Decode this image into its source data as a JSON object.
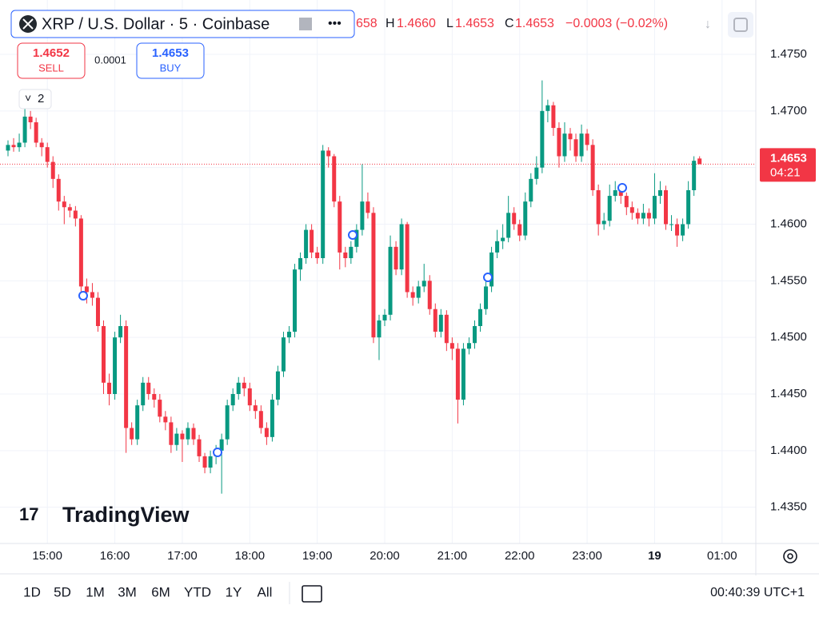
{
  "header": {
    "symbol": "XRP / U.S. Dollar · 5 · Coinbase",
    "open_partial": "658",
    "high_label": "H",
    "high": "1.4660",
    "low_label": "L",
    "low": "1.4653",
    "close_label": "C",
    "close": "1.4653",
    "change": "−0.0003 (−0.02%)"
  },
  "trade": {
    "sell_price": "1.4652",
    "sell_label": "SELL",
    "spread": "0.0001",
    "buy_price": "1.4653",
    "buy_label": "BUY"
  },
  "indicators_count": "2",
  "logo": "TradingView",
  "toolbar": {
    "ranges": [
      "1D",
      "5D",
      "1M",
      "3M",
      "6M",
      "YTD",
      "1Y",
      "All"
    ],
    "clock": "00:40:39 UTC+1"
  },
  "chart_data": {
    "type": "candlestick",
    "up_color": "#089981",
    "down_color": "#f23645",
    "grid": true,
    "ylim": [
      1.4318,
      1.4798
    ],
    "yticks": [
      {
        "value": 1.435,
        "label": "1.4350"
      },
      {
        "value": 1.44,
        "label": "1.4400"
      },
      {
        "value": 1.445,
        "label": "1.4450"
      },
      {
        "value": 1.45,
        "label": "1.4500"
      },
      {
        "value": 1.455,
        "label": "1.4550"
      },
      {
        "value": 1.46,
        "label": "1.4600"
      },
      {
        "value": 1.465,
        "label": "1.4650"
      },
      {
        "value": 1.47,
        "label": "1.4700"
      },
      {
        "value": 1.475,
        "label": "1.4750"
      }
    ],
    "xticks": [
      "15:00",
      "16:00",
      "17:00",
      "18:00",
      "19:00",
      "20:00",
      "21:00",
      "22:00",
      "23:00",
      {
        "value": "00:00",
        "label": "19"
      },
      "01:00"
    ],
    "last_price": {
      "value": 1.4653,
      "label": "1.4653",
      "countdown": "04:21"
    },
    "x": [
      "14:25",
      "14:30",
      "14:35",
      "14:40",
      "14:45",
      "14:50",
      "14:55",
      "15:00",
      "15:05",
      "15:10",
      "15:15",
      "15:20",
      "15:25",
      "15:30",
      "15:35",
      "15:40",
      "15:45",
      "15:50",
      "15:55",
      "16:00",
      "16:05",
      "16:10",
      "16:15",
      "16:20",
      "16:25",
      "16:30",
      "16:35",
      "16:40",
      "16:45",
      "16:50",
      "16:55",
      "17:00",
      "17:05",
      "17:10",
      "17:15",
      "17:20",
      "17:25",
      "17:30",
      "17:35",
      "17:40",
      "17:45",
      "17:50",
      "17:55",
      "18:00",
      "18:05",
      "18:10",
      "18:15",
      "18:20",
      "18:25",
      "18:30",
      "18:35",
      "18:40",
      "18:45",
      "18:50",
      "18:55",
      "19:00",
      "19:05",
      "19:10",
      "19:15",
      "19:20",
      "19:25",
      "19:30",
      "19:35",
      "19:40",
      "19:45",
      "19:50",
      "19:55",
      "20:00",
      "20:05",
      "20:10",
      "20:15",
      "20:20",
      "20:25",
      "20:30",
      "20:35",
      "20:40",
      "20:45",
      "20:50",
      "20:55",
      "21:00",
      "21:05",
      "21:10",
      "21:15",
      "21:20",
      "21:25",
      "21:30",
      "21:35",
      "21:40",
      "21:45",
      "21:50",
      "21:55",
      "22:00",
      "22:05",
      "22:10",
      "22:15",
      "22:20",
      "22:25",
      "22:30",
      "22:35",
      "22:40",
      "22:45",
      "22:50",
      "22:55",
      "23:00",
      "23:05",
      "23:10",
      "23:15",
      "23:20",
      "23:25",
      "23:30",
      "23:35",
      "23:40",
      "23:45",
      "23:50",
      "23:55",
      "00:00",
      "00:05",
      "00:10",
      "00:15",
      "00:20",
      "00:25",
      "00:30",
      "00:35",
      "00:40"
    ],
    "ohlc": [
      [
        1.4665,
        1.4674,
        1.466,
        1.467
      ],
      [
        1.467,
        1.4676,
        1.4664,
        1.4668
      ],
      [
        1.4668,
        1.468,
        1.4664,
        1.4672
      ],
      [
        1.4672,
        1.4712,
        1.4668,
        1.4695
      ],
      [
        1.4695,
        1.47,
        1.4684,
        1.469
      ],
      [
        1.469,
        1.4694,
        1.4668,
        1.4672
      ],
      [
        1.4672,
        1.4676,
        1.466,
        1.4668
      ],
      [
        1.4668,
        1.4672,
        1.465,
        1.4655
      ],
      [
        1.4655,
        1.466,
        1.4632,
        1.464
      ],
      [
        1.464,
        1.4644,
        1.4612,
        1.462
      ],
      [
        1.462,
        1.4625,
        1.46,
        1.4615
      ],
      [
        1.4615,
        1.4618,
        1.4606,
        1.4612
      ],
      [
        1.4612,
        1.4616,
        1.4598,
        1.4605
      ],
      [
        1.4605,
        1.4608,
        1.454,
        1.4545
      ],
      [
        1.4545,
        1.4552,
        1.453,
        1.454
      ],
      [
        1.454,
        1.4548,
        1.4528,
        1.4535
      ],
      [
        1.4535,
        1.454,
        1.4505,
        1.451
      ],
      [
        1.451,
        1.4515,
        1.445,
        1.446
      ],
      [
        1.446,
        1.4468,
        1.444,
        1.445
      ],
      [
        1.445,
        1.4505,
        1.4445,
        1.45
      ],
      [
        1.45,
        1.452,
        1.4495,
        1.451
      ],
      [
        1.451,
        1.4515,
        1.4398,
        1.442
      ],
      [
        1.442,
        1.4425,
        1.4405,
        1.441
      ],
      [
        1.441,
        1.4445,
        1.4405,
        1.444
      ],
      [
        1.444,
        1.4465,
        1.4435,
        1.446
      ],
      [
        1.446,
        1.4465,
        1.4445,
        1.445
      ],
      [
        1.445,
        1.4455,
        1.4438,
        1.4445
      ],
      [
        1.4445,
        1.445,
        1.4425,
        1.443
      ],
      [
        1.443,
        1.4435,
        1.4418,
        1.4425
      ],
      [
        1.4425,
        1.443,
        1.4398,
        1.4405
      ],
      [
        1.4405,
        1.442,
        1.44,
        1.4415
      ],
      [
        1.4415,
        1.4418,
        1.439,
        1.441
      ],
      [
        1.441,
        1.4425,
        1.4405,
        1.442
      ],
      [
        1.442,
        1.4424,
        1.4405,
        1.441
      ],
      [
        1.441,
        1.4414,
        1.439,
        1.4395
      ],
      [
        1.4395,
        1.4398,
        1.438,
        1.4385
      ],
      [
        1.4385,
        1.44,
        1.438,
        1.4395
      ],
      [
        1.4395,
        1.4405,
        1.4388,
        1.44
      ],
      [
        1.44,
        1.4415,
        1.4362,
        1.441
      ],
      [
        1.441,
        1.4445,
        1.4405,
        1.444
      ],
      [
        1.444,
        1.4455,
        1.4435,
        1.445
      ],
      [
        1.445,
        1.4465,
        1.4445,
        1.446
      ],
      [
        1.446,
        1.4465,
        1.4448,
        1.4455
      ],
      [
        1.4455,
        1.446,
        1.4435,
        1.444
      ],
      [
        1.444,
        1.4445,
        1.4428,
        1.4435
      ],
      [
        1.4435,
        1.444,
        1.4415,
        1.442
      ],
      [
        1.442,
        1.4425,
        1.4405,
        1.4412
      ],
      [
        1.4412,
        1.445,
        1.4408,
        1.4445
      ],
      [
        1.4445,
        1.4475,
        1.444,
        1.447
      ],
      [
        1.447,
        1.4505,
        1.4465,
        1.45
      ],
      [
        1.45,
        1.451,
        1.4495,
        1.4505
      ],
      [
        1.4505,
        1.4565,
        1.45,
        1.456
      ],
      [
        1.456,
        1.4575,
        1.455,
        1.457
      ],
      [
        1.457,
        1.46,
        1.4565,
        1.4595
      ],
      [
        1.4595,
        1.46,
        1.457,
        1.4575
      ],
      [
        1.4575,
        1.458,
        1.4565,
        1.457
      ],
      [
        1.457,
        1.467,
        1.4565,
        1.4665
      ],
      [
        1.4665,
        1.4668,
        1.465,
        1.466
      ],
      [
        1.466,
        1.4662,
        1.4615,
        1.462
      ],
      [
        1.462,
        1.4625,
        1.456,
        1.4575
      ],
      [
        1.4575,
        1.458,
        1.4562,
        1.457
      ],
      [
        1.457,
        1.4585,
        1.4565,
        1.458
      ],
      [
        1.458,
        1.46,
        1.4575,
        1.4595
      ],
      [
        1.4595,
        1.4653,
        1.459,
        1.462
      ],
      [
        1.462,
        1.4628,
        1.4605,
        1.461
      ],
      [
        1.461,
        1.4615,
        1.4495,
        1.45
      ],
      [
        1.45,
        1.452,
        1.448,
        1.4515
      ],
      [
        1.4515,
        1.4525,
        1.451,
        1.452
      ],
      [
        1.452,
        1.459,
        1.4515,
        1.458
      ],
      [
        1.458,
        1.4585,
        1.4555,
        1.456
      ],
      [
        1.456,
        1.4605,
        1.4555,
        1.46
      ],
      [
        1.46,
        1.4602,
        1.4535,
        1.454
      ],
      [
        1.454,
        1.4545,
        1.4528,
        1.4535
      ],
      [
        1.4535,
        1.455,
        1.453,
        1.4545
      ],
      [
        1.4545,
        1.4565,
        1.454,
        1.455
      ],
      [
        1.455,
        1.4555,
        1.452,
        1.4525
      ],
      [
        1.4525,
        1.453,
        1.45,
        1.4505
      ],
      [
        1.4505,
        1.4525,
        1.45,
        1.452
      ],
      [
        1.452,
        1.4524,
        1.4488,
        1.4495
      ],
      [
        1.4495,
        1.45,
        1.448,
        1.449
      ],
      [
        1.449,
        1.4495,
        1.4424,
        1.4445
      ],
      [
        1.4445,
        1.4495,
        1.444,
        1.449
      ],
      [
        1.449,
        1.45,
        1.4485,
        1.4495
      ],
      [
        1.4495,
        1.4515,
        1.449,
        1.451
      ],
      [
        1.451,
        1.453,
        1.4505,
        1.4525
      ],
      [
        1.4525,
        1.455,
        1.452,
        1.4545
      ],
      [
        1.4545,
        1.458,
        1.454,
        1.4575
      ],
      [
        1.4575,
        1.4595,
        1.457,
        1.4585
      ],
      [
        1.4585,
        1.46,
        1.4578,
        1.4588
      ],
      [
        1.4588,
        1.4625,
        1.4584,
        1.461
      ],
      [
        1.461,
        1.4615,
        1.4595,
        1.46
      ],
      [
        1.46,
        1.4604,
        1.4585,
        1.459
      ],
      [
        1.459,
        1.4628,
        1.4586,
        1.462
      ],
      [
        1.462,
        1.4645,
        1.4615,
        1.464
      ],
      [
        1.464,
        1.466,
        1.4635,
        1.465
      ],
      [
        1.465,
        1.4727,
        1.4645,
        1.47
      ],
      [
        1.47,
        1.471,
        1.469,
        1.4705
      ],
      [
        1.4705,
        1.4708,
        1.4678,
        1.4685
      ],
      [
        1.4685,
        1.469,
        1.465,
        1.466
      ],
      [
        1.466,
        1.469,
        1.4655,
        1.468
      ],
      [
        1.468,
        1.4685,
        1.4665,
        1.4675
      ],
      [
        1.4675,
        1.468,
        1.4655,
        1.466
      ],
      [
        1.466,
        1.4688,
        1.4655,
        1.468
      ],
      [
        1.468,
        1.4684,
        1.4665,
        1.467
      ],
      [
        1.467,
        1.4675,
        1.4625,
        1.463
      ],
      [
        1.463,
        1.4635,
        1.459,
        1.46
      ],
      [
        1.46,
        1.461,
        1.4595,
        1.4603
      ],
      [
        1.4603,
        1.4635,
        1.4598,
        1.4625
      ],
      [
        1.4625,
        1.4638,
        1.462,
        1.463
      ],
      [
        1.463,
        1.4634,
        1.4618,
        1.4625
      ],
      [
        1.4625,
        1.4628,
        1.4608,
        1.4615
      ],
      [
        1.4615,
        1.462,
        1.4604,
        1.461
      ],
      [
        1.461,
        1.4614,
        1.46,
        1.4605
      ],
      [
        1.4605,
        1.4618,
        1.46,
        1.461
      ],
      [
        1.461,
        1.4614,
        1.4598,
        1.4605
      ],
      [
        1.4605,
        1.4645,
        1.46,
        1.4625
      ],
      [
        1.4625,
        1.4638,
        1.4618,
        1.463
      ],
      [
        1.463,
        1.4634,
        1.4595,
        1.46
      ],
      [
        1.46,
        1.4608,
        1.4594,
        1.46
      ],
      [
        1.46,
        1.4605,
        1.458,
        1.459
      ],
      [
        1.459,
        1.4605,
        1.4585,
        1.46
      ],
      [
        1.46,
        1.4638,
        1.4596,
        1.463
      ],
      [
        1.463,
        1.466,
        1.4625,
        1.4656
      ],
      [
        1.4658,
        1.466,
        1.4653,
        1.4653
      ]
    ]
  }
}
